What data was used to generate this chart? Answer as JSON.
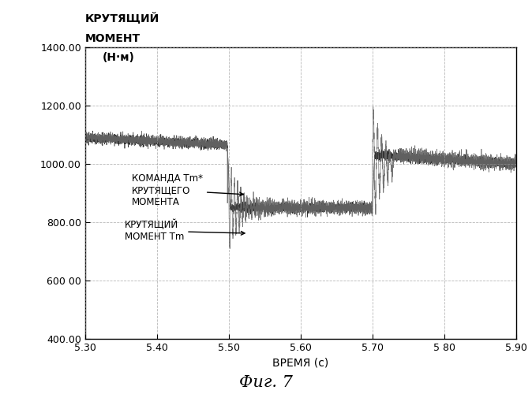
{
  "xlabel": "ВРЕМЯ (с)",
  "ylabel_line1": "КРУТЯЩИЙ",
  "ylabel_line2": "МОМЕНТ",
  "ylabel_line3": "(Н·м)",
  "figure_title": "Фиг. 7",
  "xlim": [
    5.3,
    5.9
  ],
  "ylim": [
    400.0,
    1400.0
  ],
  "xticks": [
    5.3,
    5.4,
    5.5,
    5.6,
    5.7,
    5.8,
    5.9
  ],
  "xtick_labels": [
    "5.30",
    "5.40",
    "5.50",
    "5.60",
    "5.70",
    "5 80",
    "5.90"
  ],
  "yticks": [
    400.0,
    600.0,
    800.0,
    1000.0,
    1200.0,
    1400.0
  ],
  "ytick_labels": [
    "400.00",
    "600 00",
    "800.00",
    "1000.00",
    "1200.00",
    "1400.00"
  ],
  "annotation1_text": "КОМАНДА Tm*\nКРУТЯЩЕГО\nМОМЕНТА",
  "annotation2_text": "КРУТЯЩИЙ\nМОМЕНТ Tm",
  "bg_color": "#ffffff",
  "line_color": "#000000",
  "grid_color": "#999999",
  "noise_amp_fine": 8,
  "noise_amp_medium": 15
}
